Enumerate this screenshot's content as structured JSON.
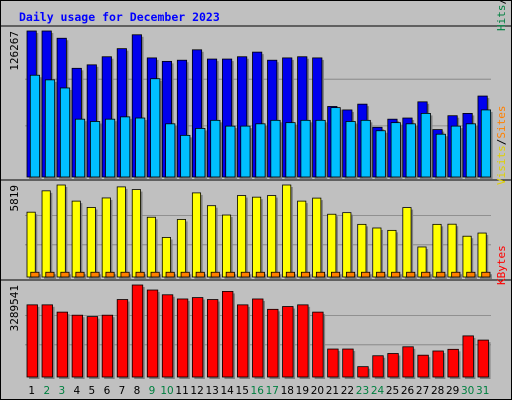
{
  "chart_data": {
    "type": "bar",
    "title": "Daily usage for December 2023",
    "colors": {
      "background": "#c0c0c0",
      "title": "#0000ff",
      "hits": "#0000ee",
      "files": "#00c0ff",
      "pages": "#00c0ff",
      "visits": "#ffff00",
      "sites": "#ff8000",
      "kbytes": "#ff0000",
      "weekend_label": "#008040",
      "weekday_label": "#000000"
    },
    "days": [
      "1",
      "2",
      "3",
      "4",
      "5",
      "6",
      "7",
      "8",
      "9",
      "10",
      "11",
      "12",
      "13",
      "14",
      "15",
      "16",
      "17",
      "18",
      "19",
      "20",
      "21",
      "22",
      "23",
      "24",
      "25",
      "26",
      "27",
      "28",
      "29",
      "30",
      "31"
    ],
    "weekend_days": [
      "2",
      "3",
      "9",
      "10",
      "16",
      "17",
      "23",
      "24",
      "30",
      "31"
    ],
    "panels": [
      {
        "name": "hits-files",
        "max_label": "126267",
        "ymax": 126267,
        "legend": [
          {
            "text": "Hits",
            "color": "#008040"
          },
          {
            "text": "/",
            "color": "#000000"
          },
          {
            "text": "Files",
            "color": "#0000ee"
          },
          {
            "text": "/",
            "color": "#000000"
          },
          {
            "text": "Pages",
            "color": "#00a8e0"
          }
        ],
        "series": [
          {
            "name": "Hits",
            "color": "#0000ee",
            "values": [
              126267,
              126267,
              120000,
              94000,
              97000,
              104000,
              111000,
              123000,
              103000,
              100000,
              101000,
              110000,
              102000,
              102000,
              104000,
              108000,
              101000,
              103000,
              104000,
              103000,
              61000,
              58000,
              63000,
              43000,
              50000,
              51000,
              65000,
              41000,
              53000,
              55000,
              70000
            ]
          },
          {
            "name": "Files",
            "color": "#00c0ff",
            "values": [
              88000,
              84000,
              77000,
              50000,
              48000,
              50000,
              52000,
              51000,
              85000,
              46000,
              36000,
              42000,
              49000,
              44000,
              44000,
              46000,
              49000,
              47000,
              49000,
              49000,
              60000,
              48000,
              49000,
              40000,
              47000,
              46000,
              55000,
              37000,
              44000,
              46000,
              58000
            ]
          },
          {
            "name": "Pages",
            "color": "#00c0ff",
            "values": [
              84000,
              80000,
              74000,
              46000,
              45000,
              47000,
              49000,
              48000,
              82000,
              42000,
              34000,
              40000,
              45000,
              41000,
              41000,
              44000,
              46000,
              45000,
              46000,
              46000,
              57000,
              45000,
              46000,
              37000,
              44000,
              43000,
              52000,
              35000,
              41000,
              43000,
              55000
            ]
          }
        ]
      },
      {
        "name": "visits-sites",
        "max_label": "5819",
        "ymax": 5819,
        "legend": [
          {
            "text": "Visits",
            "color": "#e0d000"
          },
          {
            "text": "/",
            "color": "#000000"
          },
          {
            "text": "Sites",
            "color": "#ff8000"
          }
        ],
        "series": [
          {
            "name": "Visits",
            "color": "#ffff00",
            "values": [
              4100,
              5450,
              5819,
              4800,
              4400,
              5000,
              5700,
              5530,
              3780,
              2500,
              3640,
              5320,
              4510,
              3920,
              5150,
              5050,
              5150,
              5819,
              4800,
              4990,
              3970,
              4070,
              3330,
              3100,
              2950,
              4390,
              1900,
              3330,
              3340,
              2580,
              2780
            ]
          },
          {
            "name": "Sites",
            "color": "#ff8000",
            "values": [
              300,
              300,
              300,
              300,
              300,
              300,
              300,
              300,
              300,
              300,
              300,
              300,
              300,
              300,
              300,
              300,
              300,
              300,
              300,
              300,
              300,
              300,
              300,
              300,
              300,
              300,
              300,
              300,
              300,
              300,
              300
            ]
          }
        ]
      },
      {
        "name": "kbytes",
        "max_label": "3289541",
        "ymax": 3289541,
        "legend": [
          {
            "text": "KBytes",
            "color": "#ff0000"
          }
        ],
        "series": [
          {
            "name": "KBytes",
            "color": "#ff0000",
            "values": [
              2580000,
              2580000,
              2320000,
              2210000,
              2160000,
              2210000,
              2770000,
              3289541,
              3110000,
              2940000,
              2790000,
              2840000,
              2770000,
              3060000,
              2580000,
              2790000,
              2420000,
              2520000,
              2580000,
              2320000,
              1000000,
              1000000,
              370000,
              760000,
              840000,
              1080000,
              780000,
              930000,
              990000,
              1470000,
              1320000
            ]
          }
        ]
      }
    ]
  }
}
